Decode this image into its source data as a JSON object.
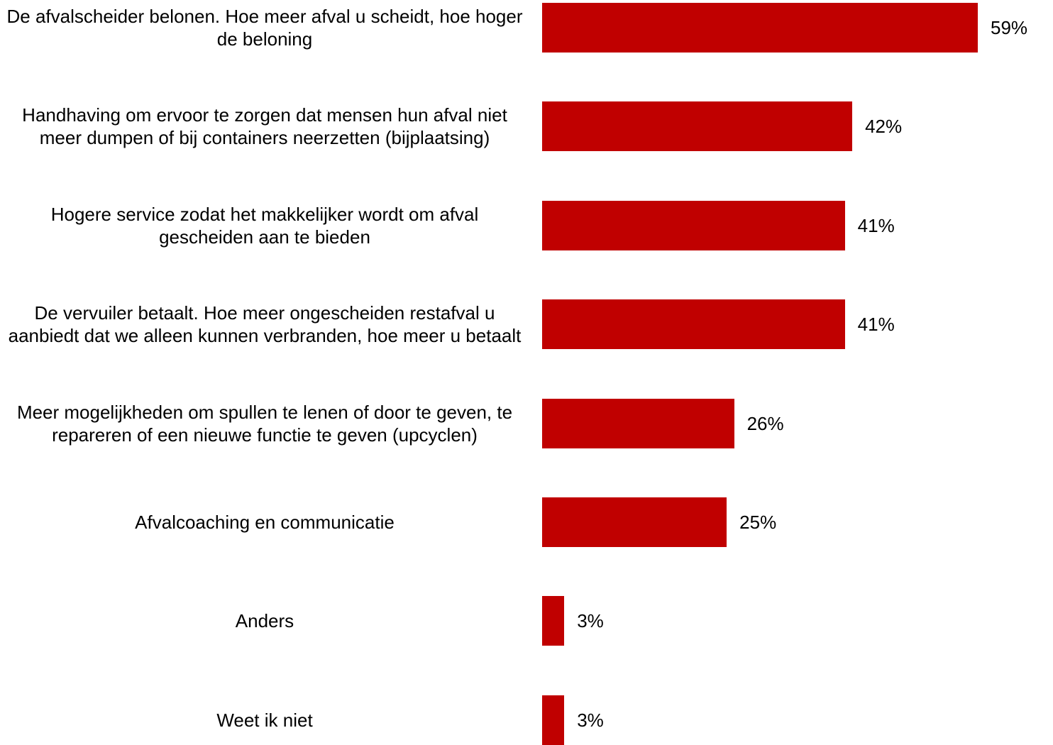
{
  "colors": {
    "bar": "#c00000",
    "text": "#000000",
    "background": "#ffffff"
  },
  "chart_data": {
    "type": "bar",
    "orientation": "horizontal",
    "categories": [
      "De afvalscheider belonen. Hoe meer afval u scheidt, hoe hoger de beloning",
      "Handhaving om ervoor te zorgen dat mensen hun afval niet meer dumpen of bij containers neerzetten (bijplaatsing)",
      "Hogere service zodat het makkelijker wordt om afval gescheiden aan te bieden",
      "De vervuiler betaalt. Hoe meer ongescheiden restafval u aanbiedt dat we alleen kunnen verbranden, hoe meer u betaalt",
      "Meer mogelijkheden om spullen te lenen of door te geven, te repareren of een nieuwe functie te geven (upcyclen)",
      "Afvalcoaching en communicatie",
      "Anders",
      "Weet ik niet"
    ],
    "values": [
      59,
      42,
      41,
      41,
      26,
      25,
      3,
      3
    ],
    "value_labels": [
      "59%",
      "42%",
      "41%",
      "41%",
      "26%",
      "25%",
      "3%",
      "3%"
    ],
    "unit": "%",
    "xlim": [
      0,
      59
    ],
    "grid": false,
    "legend": "none"
  }
}
